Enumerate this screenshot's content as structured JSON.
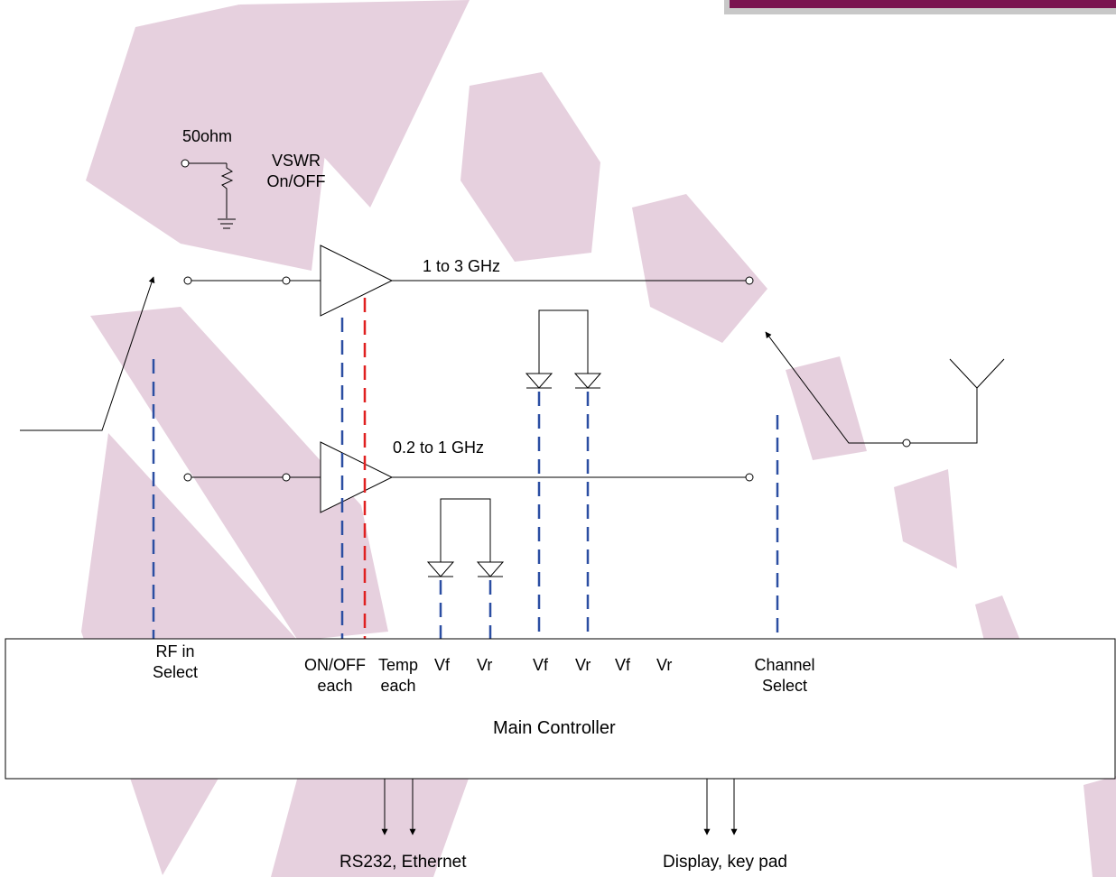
{
  "labels": {
    "resistor_value": "50ohm",
    "vswr": [
      "VSWR",
      "On/OFF"
    ],
    "band_high": "1 to 3 GHz",
    "band_low": "0.2 to 1 GHz"
  },
  "controller": {
    "title": "Main Controller",
    "ports": [
      [
        "RF in",
        "Select"
      ],
      [
        "ON/OFF",
        "each"
      ],
      [
        "Temp",
        "each"
      ],
      "Vf",
      "Vr",
      "Vf",
      "Vr",
      "Vf",
      "Vr",
      [
        "Channel",
        "Select"
      ]
    ]
  },
  "outputs": {
    "comm": "RS232, Ethernet",
    "ui": "Display, key pad"
  },
  "colors": {
    "watermark": "#e6d0de",
    "line": "#000000",
    "control_dash": "#2b4ea2",
    "temp_dash": "#e02020",
    "corner_band": "#7a1450"
  }
}
